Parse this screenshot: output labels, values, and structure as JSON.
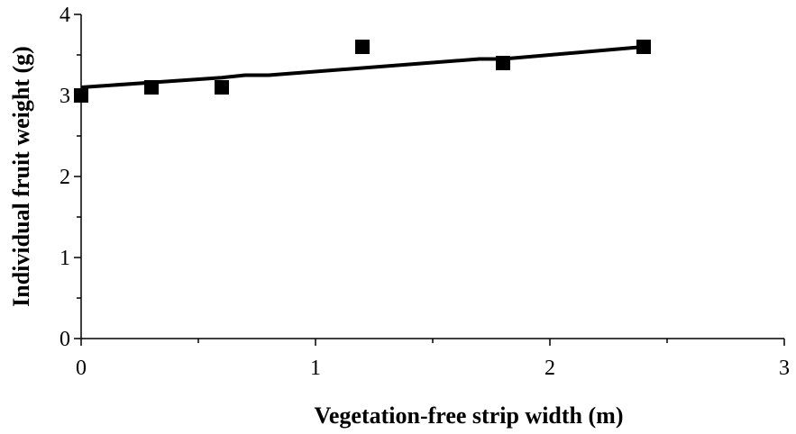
{
  "chart_data": {
    "type": "scatter",
    "title": "",
    "xlabel": "Vegetation-free strip width (m)",
    "ylabel": "Individual fruit weight (g)",
    "xlim": [
      0,
      3
    ],
    "ylim": [
      0,
      4
    ],
    "x_ticks": [
      "0",
      "1",
      "2",
      "3"
    ],
    "y_ticks": [
      "0",
      "1",
      "2",
      "3",
      "4"
    ],
    "grid": false,
    "legend": "none",
    "series": [
      {
        "type": "scatter",
        "marker": "square",
        "color": "#000000",
        "points": [
          {
            "x": 0.0,
            "y": 3.0
          },
          {
            "x": 0.3,
            "y": 3.1
          },
          {
            "x": 0.6,
            "y": 3.1
          },
          {
            "x": 1.2,
            "y": 3.6
          },
          {
            "x": 1.8,
            "y": 3.4
          },
          {
            "x": 2.4,
            "y": 3.6
          }
        ]
      },
      {
        "type": "line",
        "color": "#000000",
        "points": [
          {
            "x": 0.0,
            "y": 3.1
          },
          {
            "x": 0.3,
            "y": 3.16
          },
          {
            "x": 0.6,
            "y": 3.22
          },
          {
            "x": 0.7,
            "y": 3.25
          },
          {
            "x": 0.8,
            "y": 3.25
          },
          {
            "x": 1.7,
            "y": 3.45
          },
          {
            "x": 1.8,
            "y": 3.45
          },
          {
            "x": 2.4,
            "y": 3.6
          }
        ]
      }
    ]
  }
}
